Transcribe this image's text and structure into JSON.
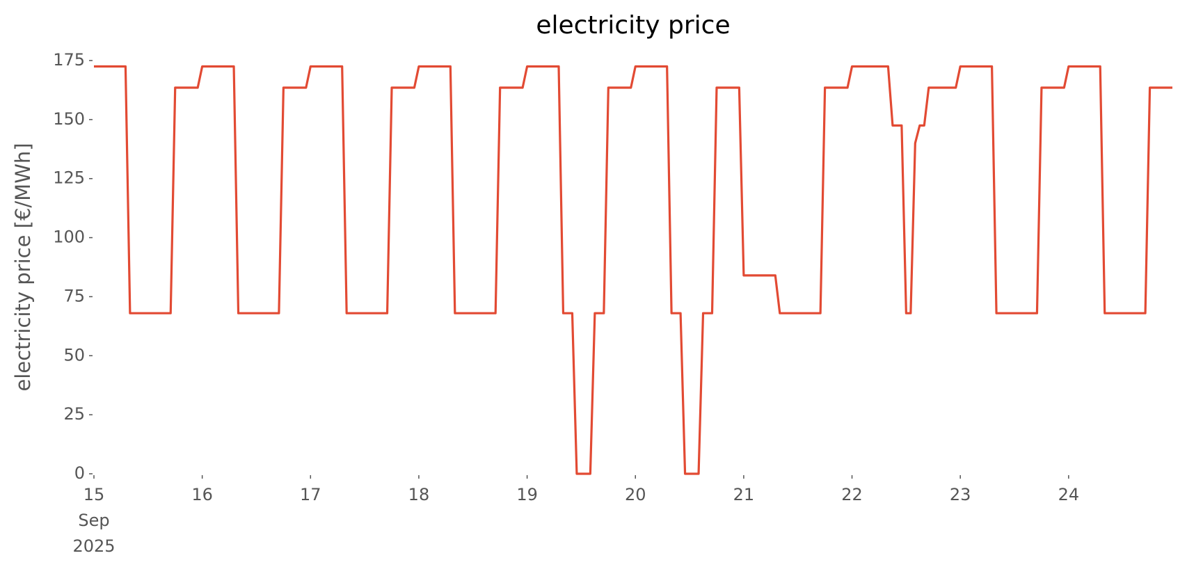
{
  "chart_data": {
    "type": "line",
    "title": "electricity price",
    "y_label": "electricity price [€/MWh]",
    "color": "#e24a33",
    "grid": false,
    "x": [
      15,
      15.2917,
      15.3333,
      15.7083,
      15.75,
      15.9583,
      16,
      16.2917,
      16.3333,
      16.7083,
      16.75,
      16.9583,
      17,
      17.2917,
      17.3333,
      17.7083,
      17.75,
      17.9583,
      18,
      18.2917,
      18.3333,
      18.7083,
      18.75,
      18.9583,
      19,
      19.2917,
      19.3333,
      19.4167,
      19.4583,
      19.5833,
      19.625,
      19.7083,
      19.75,
      19.9583,
      20,
      20.2917,
      20.3333,
      20.4167,
      20.4583,
      20.5833,
      20.625,
      20.7083,
      20.75,
      20.9583,
      21,
      21.2917,
      21.3333,
      21.7083,
      21.75,
      21.9583,
      22,
      22.3333,
      22.375,
      22.4583,
      22.5,
      22.5417,
      22.5833,
      22.625,
      22.6667,
      22.7083,
      22.9583,
      23,
      23.2917,
      23.3333,
      23.7083,
      23.75,
      23.9583,
      24,
      24.2917,
      24.3333,
      24.7083,
      24.75,
      24.9583
    ],
    "values": [
      172.5,
      172.5,
      68,
      68,
      163.5,
      163.5,
      172.5,
      172.5,
      68,
      68,
      163.5,
      163.5,
      172.5,
      172.5,
      68,
      68,
      163.5,
      163.5,
      172.5,
      172.5,
      68,
      68,
      163.5,
      163.5,
      172.5,
      172.5,
      68,
      68,
      0,
      0,
      68,
      68,
      163.5,
      163.5,
      172.5,
      172.5,
      68,
      68,
      0,
      0,
      68,
      68,
      163.5,
      163.5,
      84,
      84,
      68,
      68,
      163.5,
      163.5,
      172.5,
      172.5,
      147.5,
      147.5,
      68,
      68,
      140,
      147.5,
      147.5,
      163.5,
      163.5,
      172.5,
      172.5,
      68,
      68,
      163.5,
      163.5,
      172.5,
      172.5,
      68,
      68,
      163.5,
      163.5
    ],
    "xlim": [
      15,
      24.9583
    ],
    "xticks": [
      {
        "value": 15,
        "label": "15\nSep\n2025"
      },
      16,
      17,
      18,
      19,
      20,
      21,
      22,
      23,
      24
    ],
    "ylim": [
      0,
      175
    ],
    "yticks": [
      0,
      25,
      50,
      75,
      100,
      125,
      150,
      175
    ]
  }
}
